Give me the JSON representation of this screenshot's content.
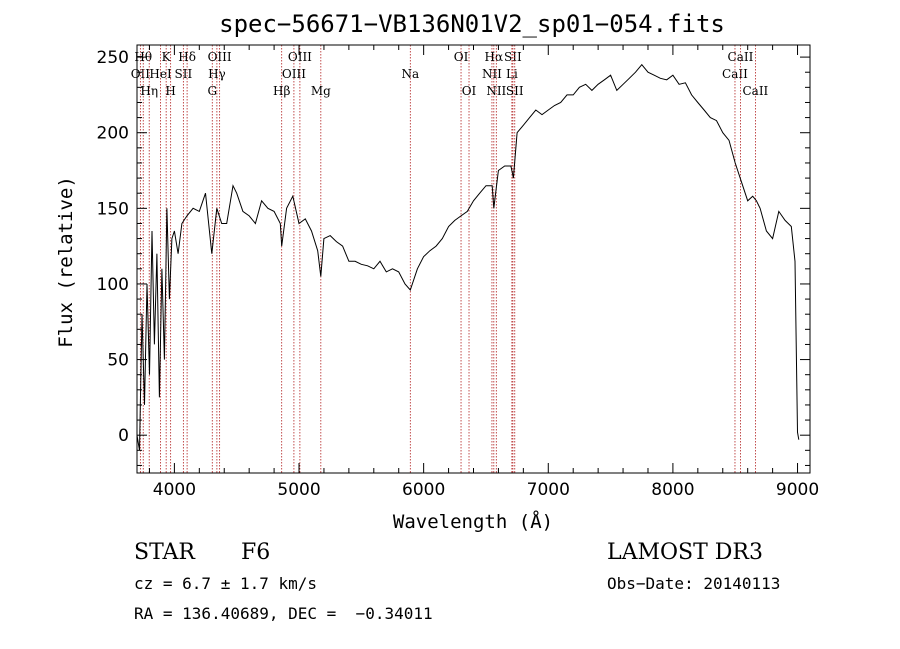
{
  "chart_data": {
    "type": "line",
    "title": "spec−56671−VB136N01V2_sp01−054.fits",
    "xlabel": "Wavelength (Å)",
    "ylabel": "Flux (relative)",
    "xlim": [
      3700,
      9100
    ],
    "ylim": [
      -25,
      258
    ],
    "xticks": [
      4000,
      5000,
      6000,
      7000,
      8000,
      9000
    ],
    "yticks": [
      0,
      50,
      100,
      150,
      200,
      250
    ],
    "series": [
      {
        "name": "flux",
        "x": [
          3700,
          3720,
          3740,
          3760,
          3780,
          3800,
          3820,
          3840,
          3860,
          3880,
          3900,
          3920,
          3940,
          3960,
          3980,
          4000,
          4030,
          4060,
          4100,
          4150,
          4200,
          4250,
          4300,
          4340,
          4380,
          4420,
          4470,
          4500,
          4550,
          4600,
          4650,
          4700,
          4750,
          4800,
          4850,
          4861,
          4900,
          4950,
          5000,
          5050,
          5100,
          5150,
          5175,
          5200,
          5250,
          5300,
          5350,
          5400,
          5450,
          5500,
          5550,
          5600,
          5650,
          5700,
          5750,
          5800,
          5850,
          5893,
          5950,
          6000,
          6050,
          6100,
          6150,
          6200,
          6250,
          6300,
          6350,
          6400,
          6450,
          6500,
          6550,
          6563,
          6600,
          6650,
          6700,
          6720,
          6750,
          6800,
          6850,
          6900,
          6950,
          7000,
          7050,
          7100,
          7150,
          7200,
          7250,
          7300,
          7350,
          7400,
          7450,
          7500,
          7550,
          7600,
          7650,
          7700,
          7750,
          7800,
          7850,
          7900,
          7950,
          8000,
          8050,
          8100,
          8150,
          8200,
          8250,
          8300,
          8350,
          8400,
          8450,
          8500,
          8540,
          8560,
          8600,
          8640,
          8670,
          8700,
          8750,
          8800,
          8850,
          8900,
          8950,
          8980,
          9000,
          9010
        ],
        "values": [
          0,
          -10,
          80,
          20,
          100,
          40,
          135,
          60,
          120,
          25,
          110,
          50,
          150,
          90,
          130,
          135,
          120,
          140,
          145,
          150,
          148,
          160,
          120,
          150,
          140,
          140,
          165,
          160,
          148,
          145,
          140,
          155,
          150,
          148,
          140,
          125,
          150,
          158,
          140,
          143,
          135,
          122,
          105,
          130,
          132,
          128,
          125,
          115,
          115,
          113,
          112,
          110,
          115,
          108,
          110,
          108,
          100,
          96,
          110,
          118,
          122,
          125,
          130,
          138,
          142,
          145,
          148,
          155,
          160,
          165,
          165,
          150,
          175,
          178,
          178,
          170,
          200,
          205,
          210,
          215,
          212,
          215,
          218,
          220,
          225,
          225,
          230,
          232,
          228,
          232,
          235,
          238,
          228,
          232,
          236,
          240,
          245,
          240,
          238,
          236,
          235,
          238,
          232,
          233,
          225,
          220,
          215,
          210,
          208,
          200,
          195,
          180,
          170,
          165,
          155,
          158,
          155,
          150,
          135,
          130,
          148,
          142,
          138,
          115,
          2,
          -3
        ]
      }
    ],
    "emission_lines": [
      {
        "wl": 3727,
        "label": "OII",
        "row": 2
      },
      {
        "wl": 3750,
        "label": "Hθ",
        "row": 1
      },
      {
        "wl": 3798,
        "label": "Hη",
        "row": 3
      },
      {
        "wl": 3889,
        "label": "HeI",
        "row": 2
      },
      {
        "wl": 3934,
        "label": "K",
        "row": 1
      },
      {
        "wl": 3970,
        "label": "H",
        "row": 3
      },
      {
        "wl": 4072,
        "label": "SII",
        "row": 2
      },
      {
        "wl": 4102,
        "label": "Hδ",
        "row": 1
      },
      {
        "wl": 4304,
        "label": "G",
        "row": 3
      },
      {
        "wl": 4341,
        "label": "Hγ",
        "row": 2
      },
      {
        "wl": 4363,
        "label": "OIII",
        "row": 1
      },
      {
        "wl": 4861,
        "label": "Hβ",
        "row": 3
      },
      {
        "wl": 4959,
        "label": "OIII",
        "row": 2
      },
      {
        "wl": 5007,
        "label": "OIII",
        "row": 1
      },
      {
        "wl": 5175,
        "label": "Mg",
        "row": 3
      },
      {
        "wl": 5893,
        "label": "Na",
        "row": 2
      },
      {
        "wl": 6300,
        "label": "OI",
        "row": 1
      },
      {
        "wl": 6364,
        "label": "OI",
        "row": 3
      },
      {
        "wl": 6548,
        "label": "NII",
        "row": 2
      },
      {
        "wl": 6563,
        "label": "Hα",
        "row": 1
      },
      {
        "wl": 6583,
        "label": "NII",
        "row": 3
      },
      {
        "wl": 6708,
        "label": "Li",
        "row": 2
      },
      {
        "wl": 6716,
        "label": "SII",
        "row": 1
      },
      {
        "wl": 6731,
        "label": "SII",
        "row": 3
      },
      {
        "wl": 8498,
        "label": "CaII",
        "row": 2
      },
      {
        "wl": 8542,
        "label": "CaII",
        "row": 1
      },
      {
        "wl": 8662,
        "label": "CaII",
        "row": 3
      }
    ],
    "line_color": "#000000",
    "marker_color": "#b22222"
  },
  "info": {
    "object_class": "STAR",
    "subclass": "F6",
    "survey": "LAMOST DR3",
    "redshift": "cz = 6.7 ± 1.7 km/s",
    "obs_date": "Obs−Date: 20140113",
    "coords": "RA = 136.40689, DEC =  −0.34011"
  }
}
